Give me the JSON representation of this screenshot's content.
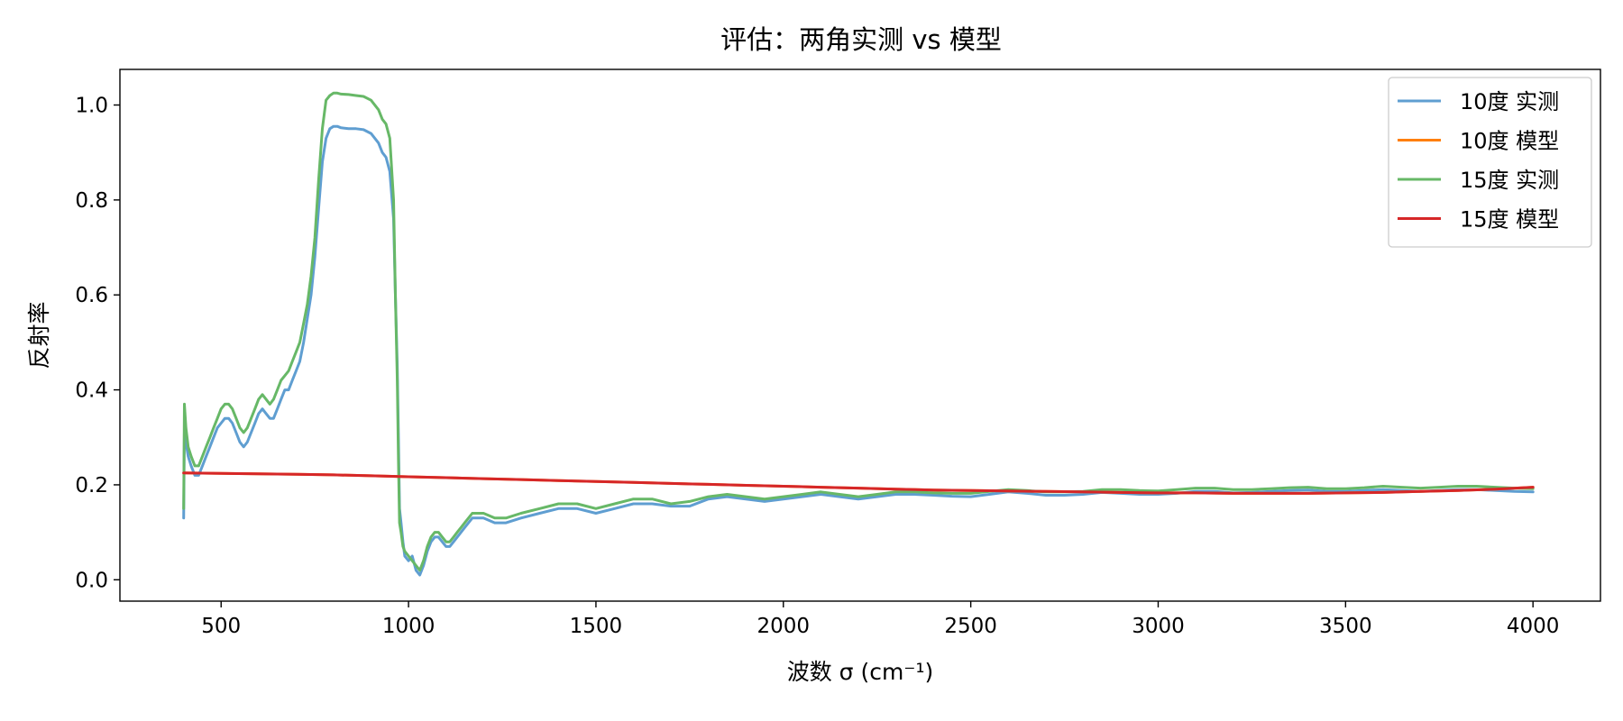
{
  "chart_data": {
    "type": "line",
    "title": "评估：两角实测 vs 模型",
    "xlabel": "波数 σ (cm⁻¹)",
    "ylabel": "反射率",
    "xlim": [
      230,
      4180
    ],
    "ylim": [
      -0.045,
      1.075
    ],
    "x_ticks": [
      500,
      1000,
      1500,
      2000,
      2500,
      3000,
      3500,
      4000
    ],
    "y_ticks": [
      0.0,
      0.2,
      0.4,
      0.6,
      0.8,
      1.0
    ],
    "grid": false,
    "legend_position": "top-right",
    "series": [
      {
        "name": "10度 实测",
        "color": "#5f9ed1",
        "x": [
          400,
          402,
          406,
          412,
          420,
          430,
          440,
          450,
          460,
          470,
          480,
          490,
          500,
          510,
          520,
          530,
          540,
          550,
          560,
          570,
          580,
          590,
          600,
          610,
          620,
          630,
          640,
          650,
          660,
          670,
          680,
          690,
          700,
          710,
          720,
          730,
          740,
          750,
          760,
          770,
          780,
          790,
          800,
          810,
          820,
          840,
          860,
          880,
          900,
          920,
          930,
          940,
          950,
          960,
          965,
          970,
          973,
          976,
          980,
          985,
          990,
          1000,
          1010,
          1020,
          1030,
          1040,
          1050,
          1060,
          1070,
          1080,
          1090,
          1100,
          1110,
          1120,
          1130,
          1140,
          1150,
          1170,
          1200,
          1230,
          1260,
          1300,
          1350,
          1400,
          1450,
          1500,
          1550,
          1600,
          1650,
          1700,
          1750,
          1800,
          1850,
          1900,
          1950,
          2000,
          2050,
          2100,
          2150,
          2200,
          2250,
          2300,
          2350,
          2400,
          2450,
          2500,
          2550,
          2600,
          2650,
          2700,
          2750,
          2800,
          2850,
          2900,
          2950,
          3000,
          3050,
          3100,
          3150,
          3200,
          3250,
          3300,
          3350,
          3400,
          3450,
          3500,
          3550,
          3600,
          3650,
          3700,
          3750,
          3800,
          3850,
          3900,
          3950,
          4000
        ],
        "y": [
          0.13,
          0.31,
          0.29,
          0.26,
          0.24,
          0.22,
          0.22,
          0.24,
          0.26,
          0.28,
          0.3,
          0.32,
          0.33,
          0.34,
          0.34,
          0.33,
          0.31,
          0.29,
          0.28,
          0.29,
          0.31,
          0.33,
          0.35,
          0.36,
          0.35,
          0.34,
          0.34,
          0.36,
          0.38,
          0.4,
          0.4,
          0.42,
          0.44,
          0.46,
          0.5,
          0.55,
          0.6,
          0.68,
          0.78,
          0.88,
          0.93,
          0.95,
          0.955,
          0.955,
          0.952,
          0.95,
          0.95,
          0.948,
          0.94,
          0.92,
          0.9,
          0.89,
          0.86,
          0.76,
          0.6,
          0.45,
          0.3,
          0.15,
          0.12,
          0.08,
          0.05,
          0.04,
          0.05,
          0.02,
          0.01,
          0.03,
          0.06,
          0.08,
          0.09,
          0.09,
          0.08,
          0.07,
          0.07,
          0.08,
          0.09,
          0.1,
          0.11,
          0.13,
          0.13,
          0.12,
          0.12,
          0.13,
          0.14,
          0.15,
          0.15,
          0.14,
          0.15,
          0.16,
          0.16,
          0.155,
          0.155,
          0.17,
          0.175,
          0.17,
          0.165,
          0.17,
          0.175,
          0.18,
          0.175,
          0.17,
          0.175,
          0.18,
          0.18,
          0.178,
          0.176,
          0.175,
          0.18,
          0.185,
          0.182,
          0.178,
          0.178,
          0.18,
          0.184,
          0.182,
          0.18,
          0.18,
          0.182,
          0.186,
          0.186,
          0.183,
          0.184,
          0.186,
          0.188,
          0.189,
          0.186,
          0.186,
          0.188,
          0.19,
          0.188,
          0.186,
          0.188,
          0.19,
          0.19,
          0.188,
          0.186,
          0.185
        ]
      },
      {
        "name": "10度 模型",
        "color": "#ff7f0e",
        "x": [
          400,
          500,
          600,
          700,
          800,
          900,
          1000,
          1100,
          1200,
          1300,
          1400,
          1500,
          1600,
          1700,
          1800,
          1900,
          2000,
          2100,
          2200,
          2300,
          2400,
          2500,
          2600,
          2700,
          2800,
          2900,
          3000,
          3100,
          3200,
          3300,
          3400,
          3500,
          3600,
          3700,
          3800,
          3900,
          4000
        ],
        "y": [
          0.225,
          0.224,
          0.223,
          0.222,
          0.221,
          0.219,
          0.217,
          0.215,
          0.213,
          0.211,
          0.209,
          0.207,
          0.205,
          0.203,
          0.201,
          0.199,
          0.197,
          0.195,
          0.193,
          0.191,
          0.189,
          0.188,
          0.187,
          0.186,
          0.185,
          0.184,
          0.183,
          0.183,
          0.182,
          0.182,
          0.182,
          0.183,
          0.184,
          0.186,
          0.188,
          0.191,
          0.195
        ]
      },
      {
        "name": "15度 实测",
        "color": "#67b867",
        "x": [
          400,
          402,
          406,
          412,
          420,
          430,
          440,
          450,
          460,
          470,
          480,
          490,
          500,
          510,
          520,
          530,
          540,
          550,
          560,
          570,
          580,
          590,
          600,
          610,
          620,
          630,
          640,
          650,
          660,
          670,
          680,
          690,
          700,
          710,
          720,
          730,
          740,
          750,
          760,
          770,
          780,
          790,
          800,
          810,
          820,
          840,
          860,
          880,
          900,
          920,
          930,
          940,
          950,
          960,
          965,
          970,
          973,
          976,
          980,
          985,
          990,
          1000,
          1010,
          1020,
          1030,
          1040,
          1050,
          1060,
          1070,
          1080,
          1090,
          1100,
          1110,
          1120,
          1130,
          1140,
          1150,
          1170,
          1200,
          1230,
          1260,
          1300,
          1350,
          1400,
          1450,
          1500,
          1550,
          1600,
          1650,
          1700,
          1750,
          1800,
          1850,
          1900,
          1950,
          2000,
          2050,
          2100,
          2150,
          2200,
          2250,
          2300,
          2350,
          2400,
          2450,
          2500,
          2550,
          2600,
          2650,
          2700,
          2750,
          2800,
          2850,
          2900,
          2950,
          3000,
          3050,
          3100,
          3150,
          3200,
          3250,
          3300,
          3350,
          3400,
          3450,
          3500,
          3550,
          3600,
          3650,
          3700,
          3750,
          3800,
          3850,
          3900,
          3950,
          4000
        ],
        "y": [
          0.15,
          0.37,
          0.32,
          0.28,
          0.26,
          0.24,
          0.24,
          0.26,
          0.28,
          0.3,
          0.32,
          0.34,
          0.36,
          0.37,
          0.37,
          0.36,
          0.34,
          0.32,
          0.31,
          0.32,
          0.34,
          0.36,
          0.38,
          0.39,
          0.38,
          0.37,
          0.38,
          0.4,
          0.42,
          0.43,
          0.44,
          0.46,
          0.48,
          0.5,
          0.54,
          0.58,
          0.64,
          0.72,
          0.84,
          0.95,
          1.01,
          1.02,
          1.025,
          1.025,
          1.023,
          1.022,
          1.02,
          1.018,
          1.01,
          0.99,
          0.97,
          0.96,
          0.93,
          0.8,
          0.6,
          0.42,
          0.25,
          0.12,
          0.1,
          0.07,
          0.06,
          0.05,
          0.04,
          0.03,
          0.02,
          0.04,
          0.07,
          0.09,
          0.1,
          0.1,
          0.09,
          0.08,
          0.08,
          0.09,
          0.1,
          0.11,
          0.12,
          0.14,
          0.14,
          0.13,
          0.13,
          0.14,
          0.15,
          0.16,
          0.16,
          0.15,
          0.16,
          0.17,
          0.17,
          0.16,
          0.165,
          0.175,
          0.18,
          0.175,
          0.17,
          0.175,
          0.18,
          0.185,
          0.18,
          0.175,
          0.18,
          0.185,
          0.185,
          0.183,
          0.182,
          0.182,
          0.186,
          0.19,
          0.188,
          0.185,
          0.185,
          0.186,
          0.19,
          0.19,
          0.188,
          0.187,
          0.19,
          0.193,
          0.193,
          0.19,
          0.19,
          0.192,
          0.194,
          0.195,
          0.192,
          0.192,
          0.194,
          0.197,
          0.195,
          0.193,
          0.195,
          0.197,
          0.197,
          0.195,
          0.193,
          0.192
        ]
      },
      {
        "name": "15度 模型",
        "color": "#d62728",
        "x": [
          400,
          500,
          600,
          700,
          800,
          900,
          1000,
          1100,
          1200,
          1300,
          1400,
          1500,
          1600,
          1700,
          1800,
          1900,
          2000,
          2100,
          2200,
          2300,
          2400,
          2500,
          2600,
          2700,
          2800,
          2900,
          3000,
          3100,
          3200,
          3300,
          3400,
          3500,
          3600,
          3700,
          3800,
          3900,
          4000
        ],
        "y": [
          0.225,
          0.224,
          0.223,
          0.222,
          0.221,
          0.219,
          0.217,
          0.215,
          0.213,
          0.211,
          0.209,
          0.207,
          0.205,
          0.203,
          0.201,
          0.199,
          0.197,
          0.195,
          0.193,
          0.191,
          0.189,
          0.188,
          0.187,
          0.186,
          0.185,
          0.184,
          0.183,
          0.183,
          0.182,
          0.182,
          0.182,
          0.183,
          0.184,
          0.186,
          0.188,
          0.191,
          0.195
        ]
      }
    ]
  }
}
